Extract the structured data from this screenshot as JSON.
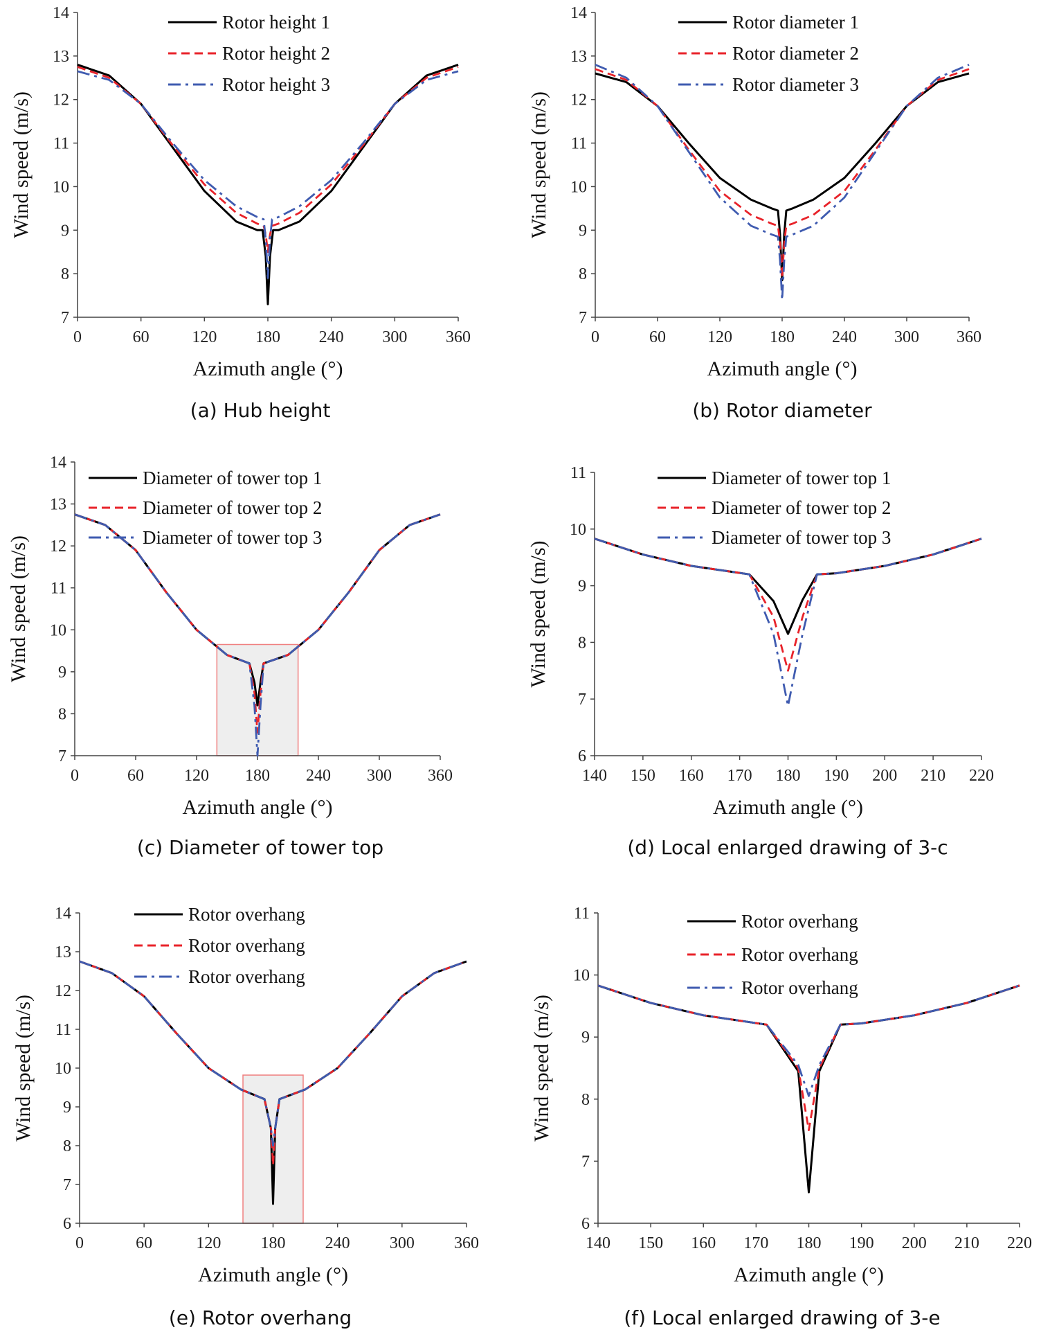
{
  "figure": {
    "captions": [
      "(a) Hub height",
      "(b) Rotor diameter",
      "(c) Diameter of tower top",
      "(d) Local enlarged drawing of 3-c",
      "(e) Rotor overhang",
      "(f) Local enlarged drawing of 3-e"
    ]
  },
  "chart_data": [
    {
      "type": "line",
      "caption": "(a) Hub height",
      "xlabel": "Azimuth angle (°)",
      "ylabel": "Wind speed (m/s)",
      "xlim": [
        0,
        360
      ],
      "ylim": [
        7,
        14
      ],
      "xticks": [
        0,
        60,
        120,
        180,
        240,
        300,
        360
      ],
      "yticks": [
        7,
        8,
        9,
        10,
        11,
        12,
        13,
        14
      ],
      "legend": "top-center",
      "grid": false,
      "series": [
        {
          "name": "Rotor height 1",
          "color": "#000000",
          "dash": "solid",
          "x": [
            0,
            30,
            60,
            90,
            120,
            150,
            170,
            175,
            178,
            180,
            182,
            185,
            190,
            210,
            240,
            270,
            300,
            330,
            360
          ],
          "y": [
            12.8,
            12.55,
            11.9,
            10.9,
            9.9,
            9.2,
            9.0,
            9.0,
            8.4,
            7.3,
            8.4,
            9.0,
            9.0,
            9.2,
            9.9,
            10.9,
            11.9,
            12.55,
            12.8
          ]
        },
        {
          "name": "Rotor height 2",
          "color": "#e8232a",
          "dash": "dashed",
          "x": [
            0,
            30,
            60,
            90,
            120,
            150,
            170,
            176,
            178,
            180,
            182,
            184,
            190,
            210,
            240,
            270,
            300,
            330,
            360
          ],
          "y": [
            12.75,
            12.5,
            11.9,
            10.95,
            10.05,
            9.4,
            9.15,
            9.1,
            8.9,
            8.5,
            8.9,
            9.1,
            9.15,
            9.4,
            10.05,
            10.95,
            11.9,
            12.5,
            12.75
          ]
        },
        {
          "name": "Rotor height 3",
          "color": "#3f5bb0",
          "dash": "dashdot",
          "x": [
            0,
            30,
            60,
            90,
            120,
            150,
            170,
            176,
            178,
            180,
            182,
            184,
            190,
            210,
            240,
            270,
            300,
            330,
            360
          ],
          "y": [
            12.65,
            12.45,
            11.9,
            11.0,
            10.15,
            9.55,
            9.3,
            9.25,
            8.8,
            7.9,
            8.8,
            9.25,
            9.3,
            9.55,
            10.15,
            11.0,
            11.9,
            12.45,
            12.65
          ]
        }
      ]
    },
    {
      "type": "line",
      "caption": "(b) Rotor diameter",
      "xlabel": "Azimuth angle (°)",
      "ylabel": "Wind speed (m/s)",
      "xlim": [
        0,
        360
      ],
      "ylim": [
        7,
        14
      ],
      "xticks": [
        0,
        60,
        120,
        180,
        240,
        300,
        360
      ],
      "yticks": [
        7,
        8,
        9,
        10,
        11,
        12,
        13,
        14
      ],
      "legend": "top-center",
      "grid": false,
      "series": [
        {
          "name": "Rotor diameter 1",
          "color": "#000000",
          "dash": "solid",
          "x": [
            0,
            30,
            60,
            90,
            120,
            150,
            170,
            176,
            178,
            180,
            182,
            184,
            190,
            210,
            240,
            270,
            300,
            330,
            360
          ],
          "y": [
            12.6,
            12.4,
            11.85,
            11.0,
            10.2,
            9.7,
            9.5,
            9.45,
            8.9,
            7.85,
            8.9,
            9.45,
            9.5,
            9.7,
            10.2,
            11.0,
            11.85,
            12.4,
            12.6
          ]
        },
        {
          "name": "Rotor diameter 2",
          "color": "#e8232a",
          "dash": "dashed",
          "x": [
            0,
            30,
            60,
            90,
            120,
            150,
            170,
            176,
            178,
            180,
            182,
            184,
            190,
            210,
            240,
            270,
            300,
            330,
            360
          ],
          "y": [
            12.7,
            12.45,
            11.85,
            10.85,
            9.9,
            9.35,
            9.15,
            9.1,
            8.7,
            7.9,
            8.7,
            9.1,
            9.15,
            9.35,
            9.9,
            10.85,
            11.85,
            12.45,
            12.7
          ]
        },
        {
          "name": "Rotor diameter 3",
          "color": "#3f5bb0",
          "dash": "dashdot",
          "x": [
            0,
            30,
            60,
            90,
            120,
            150,
            170,
            176,
            178,
            180,
            182,
            184,
            190,
            210,
            240,
            270,
            300,
            330,
            360
          ],
          "y": [
            12.8,
            12.5,
            11.85,
            10.8,
            9.75,
            9.1,
            8.9,
            8.85,
            8.3,
            7.4,
            8.3,
            8.85,
            8.9,
            9.1,
            9.75,
            10.8,
            11.85,
            12.5,
            12.8
          ]
        }
      ]
    },
    {
      "type": "line",
      "caption": "(c) Diameter of tower top",
      "xlabel": "Azimuth angle (°)",
      "ylabel": "Wind speed (m/s)",
      "xlim": [
        0,
        360
      ],
      "ylim": [
        7,
        14
      ],
      "xticks": [
        0,
        60,
        120,
        180,
        240,
        300,
        360
      ],
      "yticks": [
        7,
        8,
        9,
        10,
        11,
        12,
        13,
        14
      ],
      "legend": "top-center",
      "grid": false,
      "highlight": {
        "x": [
          140,
          220
        ],
        "y": [
          7,
          9.65
        ]
      },
      "series": [
        {
          "name": "Diameter of tower top  1",
          "color": "#000000",
          "dash": "solid",
          "x": [
            0,
            30,
            60,
            90,
            120,
            150,
            172,
            177,
            180,
            183,
            186,
            210,
            240,
            270,
            300,
            330,
            360
          ],
          "y": [
            12.75,
            12.5,
            11.9,
            10.9,
            10.0,
            9.4,
            9.2,
            8.75,
            8.2,
            8.75,
            9.2,
            9.4,
            10.0,
            10.9,
            11.9,
            12.5,
            12.75
          ]
        },
        {
          "name": "Diameter of tower top  2",
          "color": "#e8232a",
          "dash": "dashed",
          "x": [
            0,
            30,
            60,
            90,
            120,
            150,
            172,
            177,
            180,
            183,
            186,
            210,
            240,
            270,
            300,
            330,
            360
          ],
          "y": [
            12.75,
            12.5,
            11.9,
            10.9,
            10.0,
            9.4,
            9.2,
            8.5,
            7.55,
            8.5,
            9.2,
            9.4,
            10.0,
            10.9,
            11.9,
            12.5,
            12.75
          ]
        },
        {
          "name": "Diameter of tower top  3",
          "color": "#3f5bb0",
          "dash": "dashdot",
          "x": [
            0,
            30,
            60,
            90,
            120,
            150,
            172,
            177,
            180,
            183,
            186,
            210,
            240,
            270,
            300,
            330,
            360
          ],
          "y": [
            12.75,
            12.5,
            11.9,
            10.9,
            10.0,
            9.4,
            9.2,
            8.2,
            7.0,
            8.2,
            9.2,
            9.4,
            10.0,
            10.9,
            11.9,
            12.5,
            12.75
          ]
        }
      ]
    },
    {
      "type": "line",
      "caption": "(d) Local enlarged drawing of 3-c",
      "xlabel": "Azimuth angle (°)",
      "ylabel": "Wind speed (m/s)",
      "xlim": [
        140,
        220
      ],
      "ylim": [
        6,
        11
      ],
      "xticks": [
        140,
        150,
        160,
        170,
        180,
        190,
        200,
        210,
        220
      ],
      "yticks": [
        6,
        7,
        8,
        9,
        10,
        11
      ],
      "legend": "top-center",
      "grid": false,
      "series": [
        {
          "name": "Diameter of tower top  1",
          "color": "#000000",
          "dash": "solid",
          "x": [
            140,
            150,
            160,
            168,
            172,
            177,
            180,
            183,
            186,
            190,
            200,
            210,
            220
          ],
          "y": [
            9.83,
            9.55,
            9.35,
            9.25,
            9.2,
            8.73,
            8.15,
            8.75,
            9.2,
            9.22,
            9.35,
            9.55,
            9.83
          ]
        },
        {
          "name": "Diameter of tower top  2",
          "color": "#e8232a",
          "dash": "dashed",
          "x": [
            140,
            150,
            160,
            168,
            172,
            177,
            180,
            183,
            186,
            190,
            200,
            210,
            220
          ],
          "y": [
            9.83,
            9.55,
            9.35,
            9.25,
            9.2,
            8.45,
            7.5,
            8.45,
            9.2,
            9.22,
            9.35,
            9.55,
            9.83
          ]
        },
        {
          "name": "Diameter of tower top  3",
          "color": "#3f5bb0",
          "dash": "dashdot",
          "x": [
            140,
            150,
            160,
            168,
            172,
            177,
            180,
            183,
            186,
            190,
            200,
            210,
            220
          ],
          "y": [
            9.83,
            9.55,
            9.35,
            9.25,
            9.2,
            8.15,
            6.88,
            8.15,
            9.2,
            9.22,
            9.35,
            9.55,
            9.83
          ]
        }
      ]
    },
    {
      "type": "line",
      "caption": "(e) Rotor overhang",
      "xlabel": "Azimuth angle (°)",
      "ylabel": "Wind speed (m/s)",
      "xlim": [
        0,
        360
      ],
      "ylim": [
        6,
        14
      ],
      "xticks": [
        0,
        60,
        120,
        180,
        240,
        300,
        360
      ],
      "yticks": [
        6,
        7,
        8,
        9,
        10,
        11,
        12,
        13,
        14
      ],
      "legend": "top-center",
      "grid": false,
      "highlight": {
        "x": [
          152,
          208
        ],
        "y": [
          6,
          9.82
        ]
      },
      "series": [
        {
          "name": "Rotor overhang",
          "color": "#000000",
          "dash": "solid",
          "x": [
            0,
            30,
            60,
            90,
            120,
            150,
            172,
            178,
            180,
            182,
            186,
            210,
            240,
            270,
            300,
            330,
            360
          ],
          "y": [
            12.75,
            12.45,
            11.85,
            10.9,
            10.0,
            9.45,
            9.2,
            8.45,
            6.5,
            8.45,
            9.2,
            9.45,
            10.0,
            10.9,
            11.85,
            12.45,
            12.75
          ]
        },
        {
          "name": "Rotor overhang",
          "color": "#e8232a",
          "dash": "dashed",
          "x": [
            0,
            30,
            60,
            90,
            120,
            150,
            172,
            178,
            180,
            182,
            186,
            210,
            240,
            270,
            300,
            330,
            360
          ],
          "y": [
            12.75,
            12.45,
            11.85,
            10.9,
            10.0,
            9.45,
            9.2,
            8.45,
            7.5,
            8.45,
            9.2,
            9.45,
            10.0,
            10.9,
            11.85,
            12.45,
            12.75
          ]
        },
        {
          "name": "Rotor overhang",
          "color": "#3f5bb0",
          "dash": "dashdot",
          "x": [
            0,
            30,
            60,
            90,
            120,
            150,
            172,
            178,
            180,
            182,
            186,
            210,
            240,
            270,
            300,
            330,
            360
          ],
          "y": [
            12.75,
            12.45,
            11.85,
            10.9,
            10.0,
            9.45,
            9.2,
            8.45,
            8.0,
            8.45,
            9.2,
            9.45,
            10.0,
            10.9,
            11.85,
            12.45,
            12.75
          ]
        }
      ]
    },
    {
      "type": "line",
      "caption": "(f) Local enlarged drawing of 3-e",
      "xlabel": "Azimuth angle (°)",
      "ylabel": "Wind speed (m/s)",
      "xlim": [
        140,
        220
      ],
      "ylim": [
        6,
        11
      ],
      "xticks": [
        140,
        150,
        160,
        170,
        180,
        190,
        200,
        210,
        220
      ],
      "yticks": [
        6,
        7,
        8,
        9,
        10,
        11
      ],
      "legend": "top-right",
      "grid": false,
      "series": [
        {
          "name": "Rotor overhang",
          "color": "#000000",
          "dash": "solid",
          "x": [
            140,
            150,
            160,
            168,
            172,
            178,
            180,
            182,
            186,
            190,
            200,
            210,
            220
          ],
          "y": [
            9.83,
            9.55,
            9.35,
            9.25,
            9.2,
            8.45,
            6.5,
            8.45,
            9.2,
            9.22,
            9.35,
            9.55,
            9.83
          ]
        },
        {
          "name": "Rotor overhang",
          "color": "#e8232a",
          "dash": "dashed",
          "x": [
            140,
            150,
            160,
            168,
            172,
            178,
            180,
            182,
            186,
            190,
            200,
            210,
            220
          ],
          "y": [
            9.83,
            9.55,
            9.35,
            9.25,
            9.2,
            8.5,
            7.5,
            8.5,
            9.2,
            9.22,
            9.35,
            9.55,
            9.83
          ]
        },
        {
          "name": "Rotor overhang",
          "color": "#3f5bb0",
          "dash": "dashdot",
          "x": [
            140,
            150,
            160,
            168,
            172,
            178,
            180,
            182,
            186,
            190,
            200,
            210,
            220
          ],
          "y": [
            9.83,
            9.55,
            9.35,
            9.25,
            9.2,
            8.55,
            8.05,
            8.55,
            9.2,
            9.22,
            9.35,
            9.55,
            9.83
          ]
        }
      ]
    }
  ]
}
